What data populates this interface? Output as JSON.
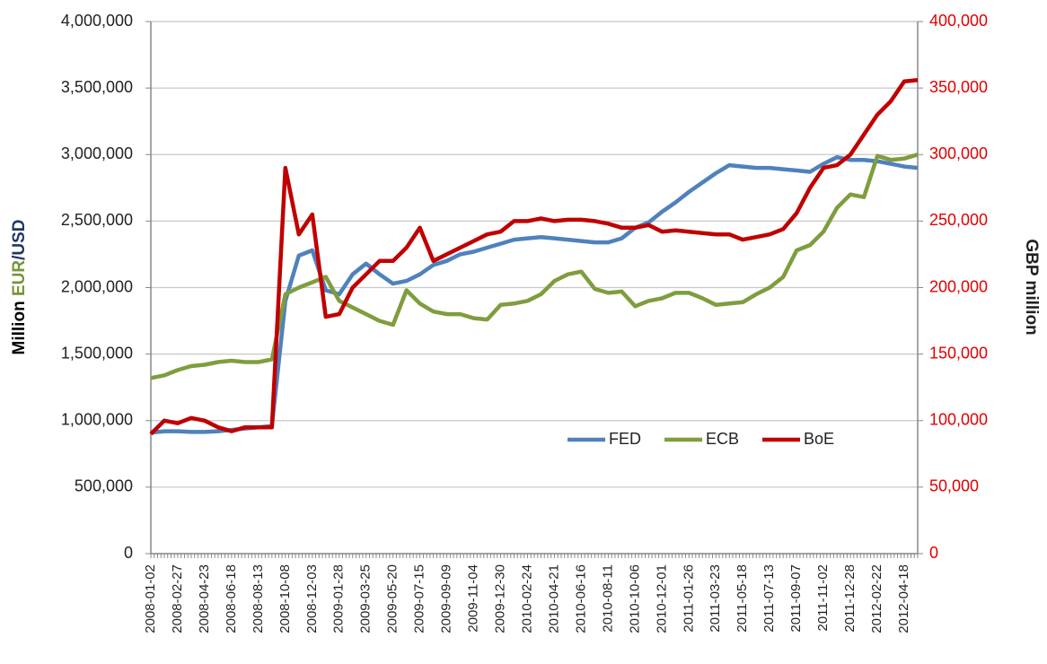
{
  "chart_data": {
    "type": "line",
    "y_title_parts": [
      {
        "text": "Million",
        "color": "#000000"
      },
      {
        "text": "EUR",
        "color": "#77933c"
      },
      {
        "text": "/USD",
        "color": "#1f3864"
      }
    ],
    "y2_title": "GBP million",
    "categories": [
      "2008-01-02",
      null,
      "2008-02-27",
      null,
      "2008-04-23",
      null,
      "2008-06-18",
      null,
      "2008-08-13",
      null,
      "2008-10-08",
      null,
      "2008-12-03",
      null,
      "2009-01-28",
      null,
      "2009-03-25",
      null,
      "2009-05-20",
      null,
      "2009-07-15",
      null,
      "2009-09-09",
      null,
      "2009-11-04",
      null,
      "2009-12-30",
      null,
      "2010-02-24",
      null,
      "2010-04-21",
      null,
      "2010-06-16",
      null,
      "2010-08-11",
      null,
      "2010-10-06",
      null,
      "2010-12-01",
      null,
      "2011-01-26",
      null,
      "2011-03-23",
      null,
      "2011-05-18",
      null,
      "2011-07-13",
      null,
      "2011-09-07",
      null,
      "2011-11-02",
      null,
      "2011-12-28",
      null,
      "2012-02-22",
      null,
      "2012-04-18",
      null
    ],
    "series": [
      {
        "name": "FED",
        "color": "#4f81bd",
        "axis": "y",
        "values": [
          910000,
          920000,
          920000,
          915000,
          915000,
          920000,
          930000,
          940000,
          950000,
          960000,
          1900000,
          2240000,
          2280000,
          1980000,
          1950000,
          2100000,
          2180000,
          2100000,
          2030000,
          2050000,
          2100000,
          2170000,
          2200000,
          2250000,
          2270000,
          2300000,
          2330000,
          2360000,
          2370000,
          2380000,
          2370000,
          2360000,
          2350000,
          2340000,
          2340000,
          2370000,
          2450000,
          2490000,
          2570000,
          2640000,
          2720000,
          2790000,
          2860000,
          2920000,
          2910000,
          2900000,
          2900000,
          2890000,
          2880000,
          2870000,
          2930000,
          2980000,
          2960000,
          2960000,
          2950000,
          2930000,
          2910000,
          2900000
        ]
      },
      {
        "name": "ECB",
        "color": "#7f9d3e",
        "axis": "y",
        "values": [
          1320000,
          1340000,
          1380000,
          1410000,
          1420000,
          1440000,
          1450000,
          1440000,
          1440000,
          1460000,
          1950000,
          2000000,
          2040000,
          2080000,
          1900000,
          1850000,
          1800000,
          1750000,
          1720000,
          1980000,
          1880000,
          1820000,
          1800000,
          1800000,
          1770000,
          1760000,
          1870000,
          1880000,
          1900000,
          1950000,
          2050000,
          2100000,
          2120000,
          1990000,
          1960000,
          1970000,
          1860000,
          1900000,
          1920000,
          1960000,
          1960000,
          1920000,
          1870000,
          1880000,
          1890000,
          1950000,
          2000000,
          2080000,
          2280000,
          2320000,
          2420000,
          2600000,
          2700000,
          2680000,
          2990000,
          2960000,
          2970000,
          3000000
        ]
      },
      {
        "name": "BoE",
        "color": "#c00000",
        "axis": "y2",
        "values": [
          90000,
          100000,
          98000,
          102000,
          100000,
          95000,
          92000,
          95000,
          95000,
          95000,
          290000,
          240000,
          255000,
          178000,
          180000,
          200000,
          210000,
          220000,
          220000,
          230000,
          245000,
          220000,
          225000,
          230000,
          235000,
          240000,
          242000,
          250000,
          250000,
          252000,
          250000,
          251000,
          251000,
          250000,
          248000,
          245000,
          245000,
          247000,
          242000,
          243000,
          242000,
          241000,
          240000,
          240000,
          236000,
          238000,
          240000,
          244000,
          256000,
          275000,
          290000,
          292000,
          300000,
          315000,
          330000,
          340000,
          355000,
          356000
        ]
      }
    ],
    "ylim": [
      0,
      4000000
    ],
    "yticks": [
      0,
      {
        "value": 500000,
        "label": "500,000"
      },
      {
        "value": 1000000,
        "label": "1,000,000"
      },
      {
        "value": 1500000,
        "label": "1,500,000"
      },
      {
        "value": 2000000,
        "label": "2,000,000"
      },
      {
        "value": 2500000,
        "label": "2,500,000"
      },
      {
        "value": 3000000,
        "label": "3,000,000"
      },
      {
        "value": 3500000,
        "label": "3,500,000"
      },
      {
        "value": 4000000,
        "label": "4,000,000"
      }
    ],
    "y2lim": [
      0,
      400000
    ],
    "y2ticks": [
      0,
      {
        "value": 50000,
        "label": "50,000"
      },
      {
        "value": 100000,
        "label": "100,000"
      },
      {
        "value": 150000,
        "label": "150,000"
      },
      {
        "value": 200000,
        "label": "200,000"
      },
      {
        "value": 250000,
        "label": "250,000"
      },
      {
        "value": 300000,
        "label": "300,000"
      },
      {
        "value": 350000,
        "label": "350,000"
      },
      {
        "value": 400000,
        "label": "400,000"
      }
    ],
    "y2_color": "#e00000",
    "grid": true,
    "legend_position": "lower-right"
  }
}
